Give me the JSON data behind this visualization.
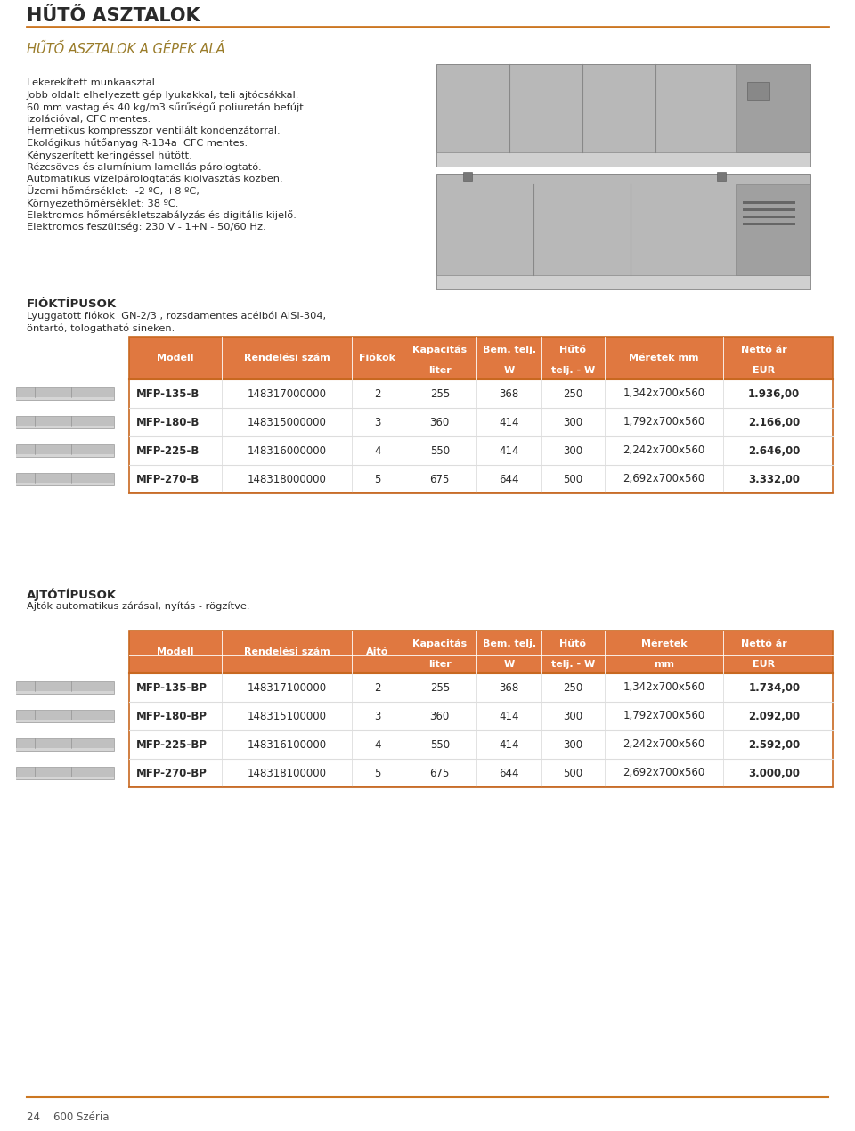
{
  "page_bg": "#ffffff",
  "title_main": "HŰTŐ ASZTALOK",
  "title_main_color": "#2a2a2a",
  "orange_line_color": "#cc7722",
  "subtitle": "HŰTŐ ASZTALOK A GÉPEK ALÁ",
  "subtitle_color": "#9a7c2a",
  "description_lines": [
    "Lekerekített munkaasztal.",
    "Jobb oldalt elhelyezett gép lyukakkal, teli ajtócsákkal.",
    "60 mm vastag és 40 kg/m3 sűrűségű poliuretán befújt",
    "izolációval, CFC mentes.",
    "Hermetikus kompresszor ventilált kondenzátorral.",
    "Ekológikus hűtőanyag R-134a  CFC mentes.",
    "Kényszerített keringéssel hűtött.",
    "Rézcsöves és alumínium lamellás párologtató.",
    "Automatikus vízelpárologtatás kiolvasztás közben.",
    "Üzemi hőmérséklet:  -2 ºC, +8 ºC,",
    "Környezethőmérséklet: 38 ºC.",
    "Elektromos hőmérsékletszabályzás és digitális kijelő.",
    "Elektromos feszültség: 230 V - 1+N - 50/60 Hz."
  ],
  "fiok_title": "FIÓKTÍPUSOK",
  "fiok_desc1": "Lyuggatott fiókok  GN-2/3 , rozsdamentes acélból AISI-304,",
  "fiok_desc2": "öntartó, tologatható sineken.",
  "ajto_title": "AJTÓTÍPUSOK",
  "ajto_desc": "Ajtók automatikus zárásal, nyítás - rögzítve.",
  "footer_text": "24    600 Széria",
  "table_header_bg": "#e07840",
  "table_border_color": "#c86820",
  "table1": {
    "headers_line1": [
      "Modell",
      "Rendelési szám",
      "Fiókok",
      "Kapacitás",
      "Bem. telj.",
      "Hűtő",
      "Méretek mm",
      "Nettó ár"
    ],
    "headers_line2": [
      "",
      "",
      "",
      "liter",
      "W",
      "telj. - W",
      "",
      "EUR"
    ],
    "rows": [
      [
        "MFP-135-B",
        "148317000000",
        "2",
        "255",
        "368",
        "250",
        "1,342x700x560",
        "1.936,00"
      ],
      [
        "MFP-180-B",
        "148315000000",
        "3",
        "360",
        "414",
        "300",
        "1,792x700x560",
        "2.166,00"
      ],
      [
        "MFP-225-B",
        "148316000000",
        "4",
        "550",
        "414",
        "300",
        "2,242x700x560",
        "2.646,00"
      ],
      [
        "MFP-270-B",
        "148318000000",
        "5",
        "675",
        "644",
        "500",
        "2,692x700x560",
        "3.332,00"
      ]
    ]
  },
  "table2": {
    "headers_line1": [
      "Modell",
      "Rendelési szám",
      "Ajtó",
      "Kapacitás",
      "Bem. telj.",
      "Hűtő",
      "Méretek",
      "Nettó ár"
    ],
    "headers_line2": [
      "",
      "",
      "",
      "liter",
      "W",
      "telj. - W",
      "mm",
      "EUR"
    ],
    "rows": [
      [
        "MFP-135-BP",
        "148317100000",
        "2",
        "255",
        "368",
        "250",
        "1,342x700x560",
        "1.734,00"
      ],
      [
        "MFP-180-BP",
        "148315100000",
        "3",
        "360",
        "414",
        "300",
        "1,792x700x560",
        "2.092,00"
      ],
      [
        "MFP-225-BP",
        "148316100000",
        "4",
        "550",
        "414",
        "300",
        "2,242x700x560",
        "2.592,00"
      ],
      [
        "MFP-270-BP",
        "148318100000",
        "5",
        "675",
        "644",
        "500",
        "2,692x700x560",
        "3.000,00"
      ]
    ]
  }
}
